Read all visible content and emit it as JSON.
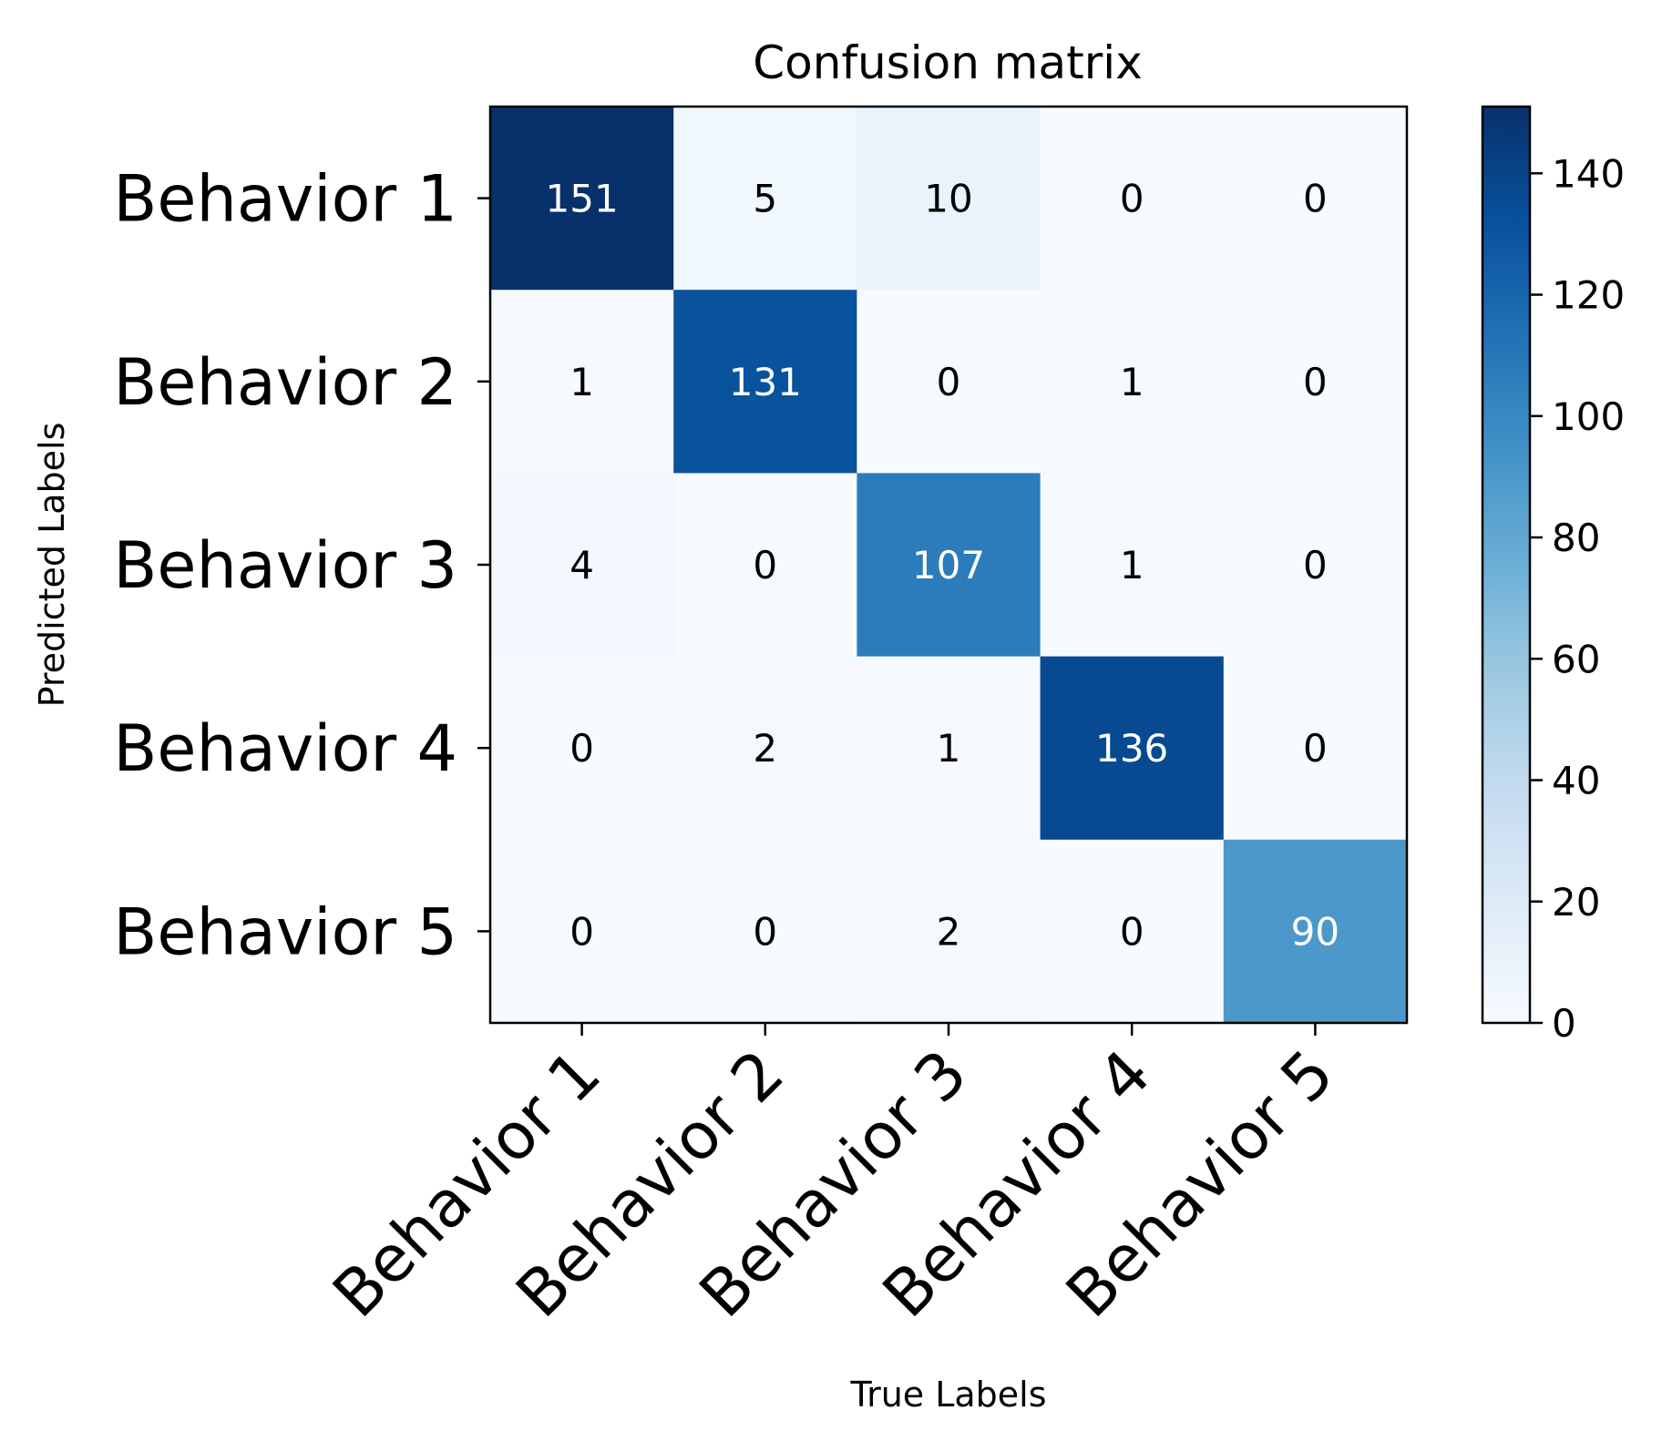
{
  "chart_data": {
    "type": "heatmap",
    "title": "Confusion matrix",
    "xlabel": "True Labels",
    "ylabel": "Predicted Labels",
    "x_categories": [
      "Behavior 1",
      "Behavior 2",
      "Behavior 3",
      "Behavior 4",
      "Behavior 5"
    ],
    "y_categories": [
      "Behavior 1",
      "Behavior 2",
      "Behavior 3",
      "Behavior 4",
      "Behavior 5"
    ],
    "values": [
      [
        151,
        5,
        10,
        0,
        0
      ],
      [
        1,
        131,
        0,
        1,
        0
      ],
      [
        4,
        0,
        107,
        1,
        0
      ],
      [
        0,
        2,
        1,
        136,
        0
      ],
      [
        0,
        0,
        2,
        0,
        90
      ]
    ],
    "colorscale": "Blues",
    "colorbar": {
      "min": 0,
      "max": 151,
      "ticks": [
        0,
        20,
        40,
        60,
        80,
        100,
        120,
        140
      ]
    },
    "x_tick_rotation_deg": 45
  }
}
